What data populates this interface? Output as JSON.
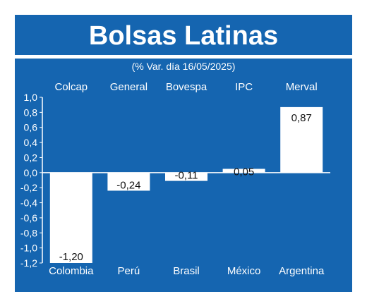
{
  "header": {
    "title": "Bolsas Latinas",
    "subtitle": "(% Var. día 16/05/2025)"
  },
  "colors": {
    "background": "#1565b0",
    "bar": "#ffffff",
    "text": "#ffffff",
    "label_text": "#111111"
  },
  "chart_data": {
    "type": "bar",
    "title": "Bolsas Latinas",
    "subtitle": "(% Var. día 16/05/2025)",
    "indices": [
      "Colcap",
      "General",
      "Bovespa",
      "IPC",
      "Merval"
    ],
    "categories": [
      "Colombia",
      "Perú",
      "Brasil",
      "México",
      "Argentina"
    ],
    "values": [
      -1.2,
      -0.24,
      -0.11,
      0.05,
      0.87
    ],
    "value_labels": [
      "-1,20",
      "-0,24",
      "-0,11",
      "0,05",
      "0,87"
    ],
    "ylim": [
      -1.2,
      1.0
    ],
    "yticks": [
      "1,0",
      "0,8",
      "0,6",
      "0,4",
      "0,2",
      "0,0",
      "-0,2",
      "-0,4",
      "-0,6",
      "-0,8",
      "-1,0",
      "-1,2"
    ],
    "ytick_values": [
      1.0,
      0.8,
      0.6,
      0.4,
      0.2,
      0.0,
      -0.2,
      -0.4,
      -0.6,
      -0.8,
      -1.0,
      -1.2
    ],
    "grid": false,
    "legend": "none"
  }
}
